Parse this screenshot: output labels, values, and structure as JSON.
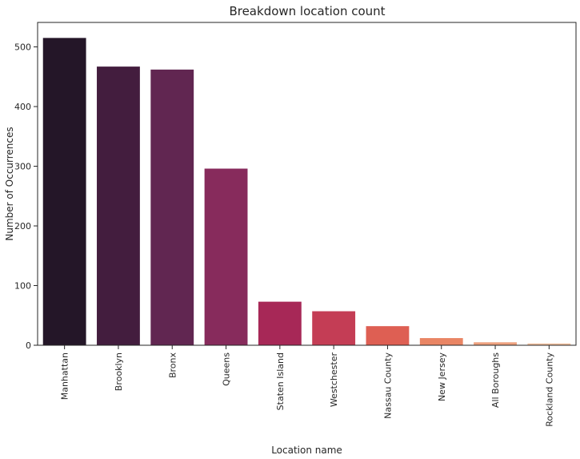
{
  "chart_data": {
    "type": "bar",
    "title": "Breakdown location count",
    "xlabel": "Location name",
    "ylabel": "Number of Occurrences",
    "categories": [
      "Manhattan",
      "Brooklyn",
      "Bronx",
      "Queens",
      "Staten Island",
      "Westchester",
      "Nassau County",
      "New Jersey",
      "All Boroughs",
      "Rockland County"
    ],
    "values": [
      515,
      467,
      462,
      296,
      73,
      57,
      32,
      12,
      5,
      3
    ],
    "colors": [
      "#241628",
      "#431d3e",
      "#612651",
      "#872b5c",
      "#a72857",
      "#c43d55",
      "#de5f53",
      "#e98564",
      "#eea27f",
      "#f1c09e"
    ],
    "ylim": [
      0,
      541
    ],
    "yticks": [
      0,
      100,
      200,
      300,
      400,
      500
    ],
    "grid": false,
    "legend": "none"
  }
}
